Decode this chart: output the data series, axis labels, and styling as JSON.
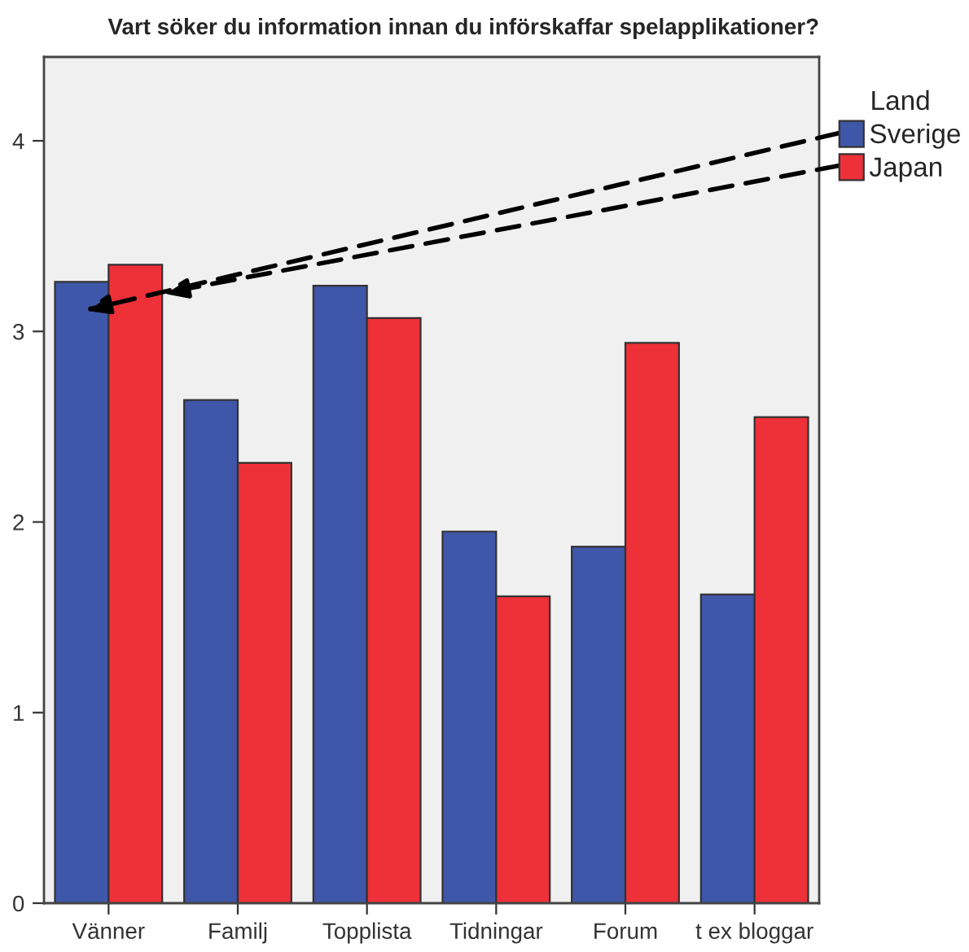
{
  "chart_data": {
    "type": "bar",
    "title": "Vart söker du information innan du införskaffar spelapplikationer?",
    "categories": [
      "Vänner",
      "Familj",
      "Topplista",
      "Tidningar",
      "Forum",
      "t ex bloggar"
    ],
    "series": [
      {
        "name": "Sverige",
        "color": "#3f57a8",
        "values": [
          3.26,
          2.64,
          3.24,
          1.95,
          1.87,
          1.62
        ]
      },
      {
        "name": "Japan",
        "color": "#ee3039",
        "values": [
          3.35,
          2.31,
          3.07,
          1.61,
          2.94,
          2.55
        ]
      }
    ],
    "ylim": [
      0,
      4.44
    ],
    "yticks": [
      0,
      1,
      2,
      3,
      4
    ],
    "grid": false,
    "legend": "right",
    "legend_title": "Land"
  }
}
